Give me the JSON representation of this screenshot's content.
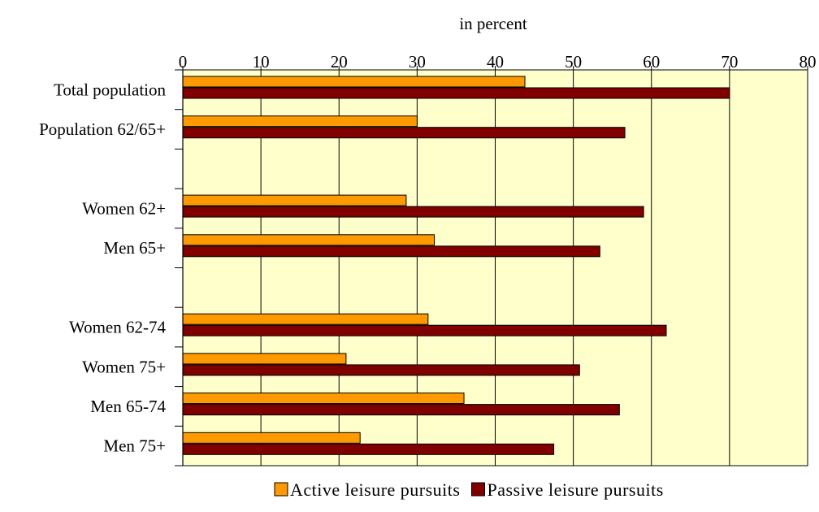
{
  "chart_data": {
    "type": "bar",
    "orientation": "horizontal",
    "xlabel": "in percent",
    "xlim": [
      0,
      80
    ],
    "x_ticks": [
      0,
      10,
      20,
      30,
      40,
      50,
      60,
      70,
      80
    ],
    "grid": true,
    "legend_position": "bottom",
    "slots": [
      {
        "category": "Total population",
        "active": 43.8,
        "passive": 70.0
      },
      {
        "category": "Population 62/65+",
        "active": 30.0,
        "passive": 56.6
      },
      {
        "category": "",
        "active": null,
        "passive": null
      },
      {
        "category": "Women 62+",
        "active": 28.6,
        "passive": 59.0
      },
      {
        "category": "Men 65+",
        "active": 32.2,
        "passive": 53.4
      },
      {
        "category": "",
        "active": null,
        "passive": null
      },
      {
        "category": "Women 62-74",
        "active": 31.4,
        "passive": 61.9
      },
      {
        "category": "Women 75+",
        "active": 20.9,
        "passive": 50.8
      },
      {
        "category": "Men 65-74",
        "active": 36.0,
        "passive": 55.9
      },
      {
        "category": "Men 75+",
        "active": 22.7,
        "passive": 47.5
      }
    ],
    "series": [
      {
        "key": "active",
        "name": "Active leisure pursuits",
        "color": "#FF9900"
      },
      {
        "key": "passive",
        "name": "Passive leisure pursuits",
        "color": "#800000"
      }
    ],
    "plot_background": "#FFFFCC"
  }
}
